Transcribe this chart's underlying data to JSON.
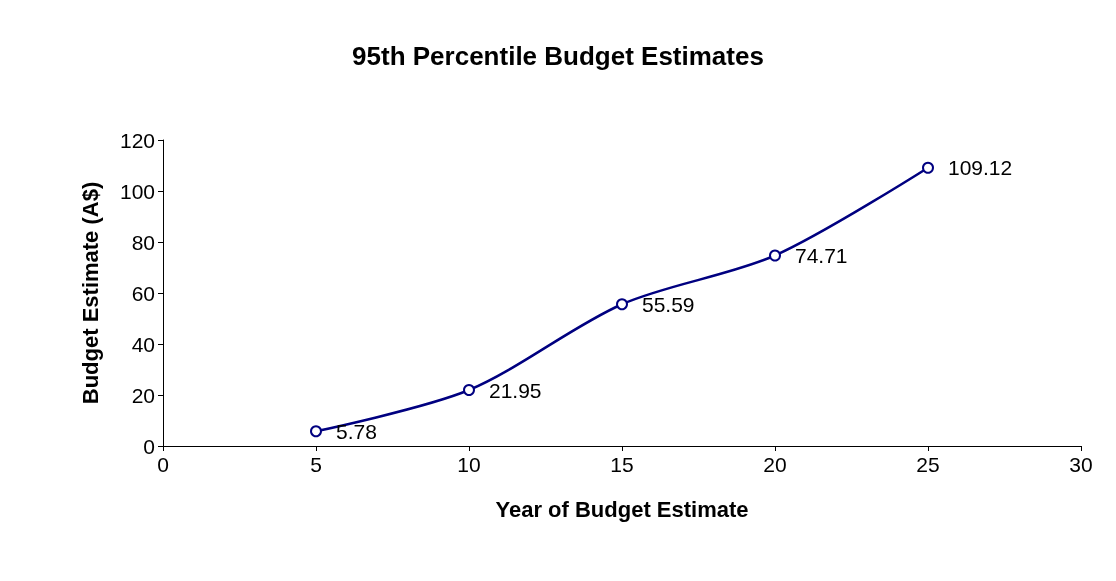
{
  "chart_data": {
    "type": "line",
    "title": "95th Percentile Budget Estimates",
    "xlabel": "Year of Budget Estimate",
    "ylabel": "Budget Estimate (A$)",
    "x": [
      5,
      10,
      15,
      20,
      25
    ],
    "series": [
      {
        "color": "#000080",
        "values": [
          5.78,
          21.95,
          55.59,
          74.71,
          109.12
        ]
      }
    ],
    "xlim": [
      0,
      30
    ],
    "xticks": [
      0,
      5,
      10,
      15,
      20,
      25,
      30
    ],
    "ylim": [
      0,
      120
    ],
    "yticks": [
      0,
      20,
      40,
      60,
      80,
      100,
      120
    ],
    "grid": false,
    "marker": "circle",
    "data_labels": true
  }
}
